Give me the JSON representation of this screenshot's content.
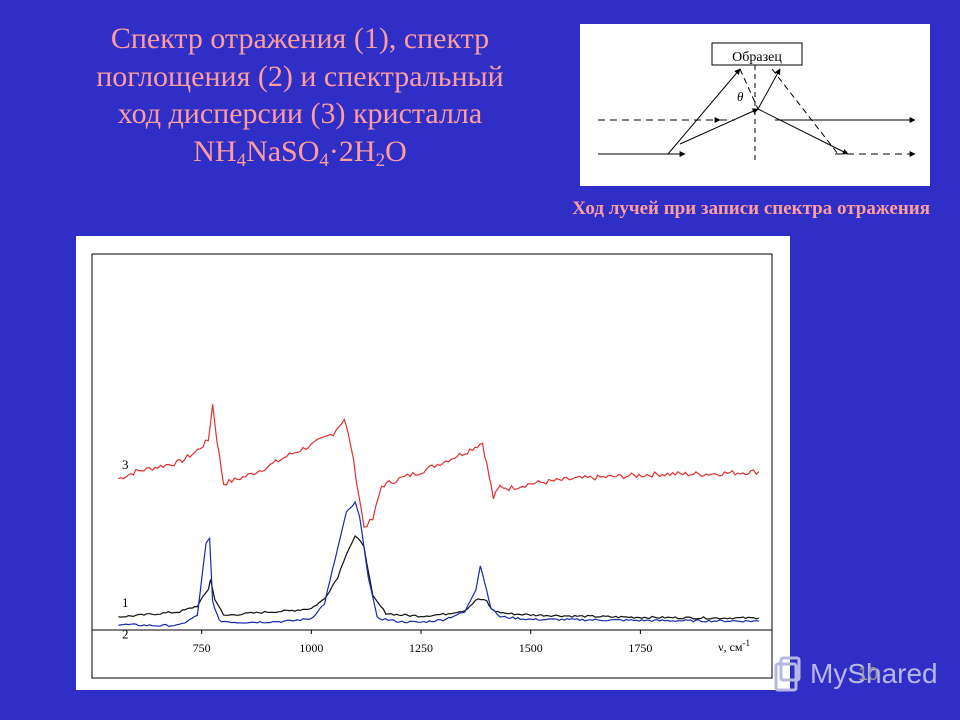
{
  "slide": {
    "title_lines": [
      "Спектр отражения (1), спектр",
      "поглощения (2) и спектральный",
      "ход дисперсии (3) кристалла"
    ],
    "formula": {
      "p1": "NH",
      "s1": "4",
      "p2": "NaSO",
      "s2": "4",
      "p3": "·2H",
      "s3": "2",
      "p4": "O"
    },
    "page_number": "10",
    "brand": "MyShared"
  },
  "inset": {
    "sample_label": "Образец",
    "angle_label": "θ",
    "caption": "Ход лучей при записи спектра отражения"
  },
  "chart_data": {
    "type": "line",
    "title": "",
    "xlabel": "ν, см",
    "xlabel_sup": "-1",
    "xlim": [
      500,
      2050
    ],
    "x_ticks": [
      750,
      1000,
      1250,
      1500,
      1750
    ],
    "grid": false,
    "legend": "none",
    "series": [
      {
        "label": "3",
        "color": "#e03030",
        "x": [
          560,
          600,
          650,
          700,
          735,
          765,
          775,
          785,
          800,
          850,
          900,
          950,
          1000,
          1050,
          1075,
          1090,
          1120,
          1140,
          1160,
          1200,
          1250,
          1300,
          1350,
          1390,
          1400,
          1415,
          1430,
          1450,
          1500,
          1600,
          1700,
          1800,
          1900,
          2020
        ],
        "y": [
          63,
          66,
          68,
          70,
          74,
          79,
          94,
          79,
          61,
          64,
          68,
          73,
          77,
          82,
          88,
          77,
          43,
          46,
          60,
          63,
          66,
          70,
          74,
          78,
          69,
          55,
          60,
          59,
          61,
          63,
          64,
          65,
          65,
          66
        ]
      },
      {
        "label": "1",
        "color": "#111111",
        "x": [
          560,
          600,
          650,
          700,
          740,
          765,
          770,
          780,
          800,
          850,
          900,
          950,
          1000,
          1030,
          1060,
          1080,
          1100,
          1120,
          1140,
          1170,
          1200,
          1250,
          1300,
          1350,
          1380,
          1400,
          1410,
          1425,
          1450,
          1500,
          1600,
          1700,
          1800,
          1900,
          2020
        ],
        "y": [
          5.5,
          6,
          6.8,
          7.6,
          10,
          17,
          21,
          13,
          6,
          6.8,
          7.5,
          8,
          9,
          13,
          22,
          32,
          39,
          35,
          14,
          7,
          6.3,
          5.8,
          6.5,
          8.2,
          13,
          12,
          8.7,
          7.5,
          6.8,
          6.3,
          5.8,
          5.4,
          5.2,
          5,
          5
        ]
      },
      {
        "label": "2",
        "color": "#1a2aa8",
        "x": [
          560,
          600,
          650,
          700,
          740,
          760,
          768,
          775,
          790,
          830,
          900,
          950,
          1000,
          1030,
          1060,
          1080,
          1100,
          1110,
          1130,
          1150,
          1200,
          1250,
          1300,
          1350,
          1375,
          1385,
          1395,
          1410,
          1430,
          1500,
          1600,
          1700,
          1800,
          1900,
          2020
        ],
        "y": [
          2.3,
          2.1,
          1.8,
          2,
          6,
          36,
          38,
          12,
          3.8,
          3.2,
          3.4,
          3.7,
          4.8,
          11,
          34,
          49,
          53,
          47,
          22,
          5,
          3.5,
          3.2,
          4.3,
          7.5,
          17,
          27,
          20,
          9,
          5.5,
          4.4,
          4.3,
          4.1,
          3.9,
          3.8,
          3.7
        ]
      }
    ]
  }
}
